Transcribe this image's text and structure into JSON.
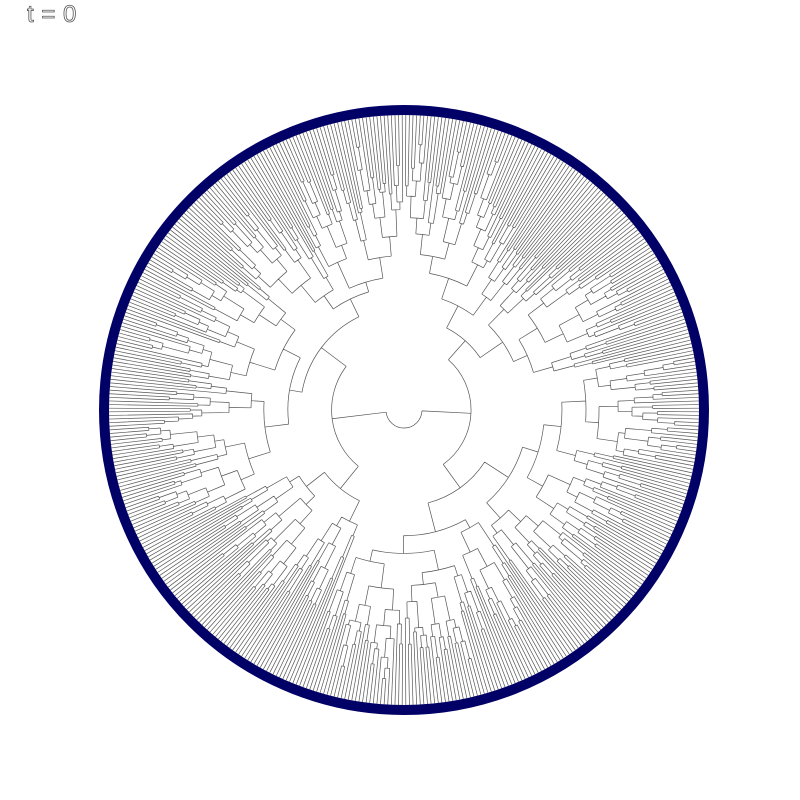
{
  "time_label": "t = 0",
  "tree": {
    "type": "circular-dendrogram",
    "leaf_count": 512,
    "seed": 7,
    "branch_color": "#555555",
    "ring_color": "#000066"
  }
}
